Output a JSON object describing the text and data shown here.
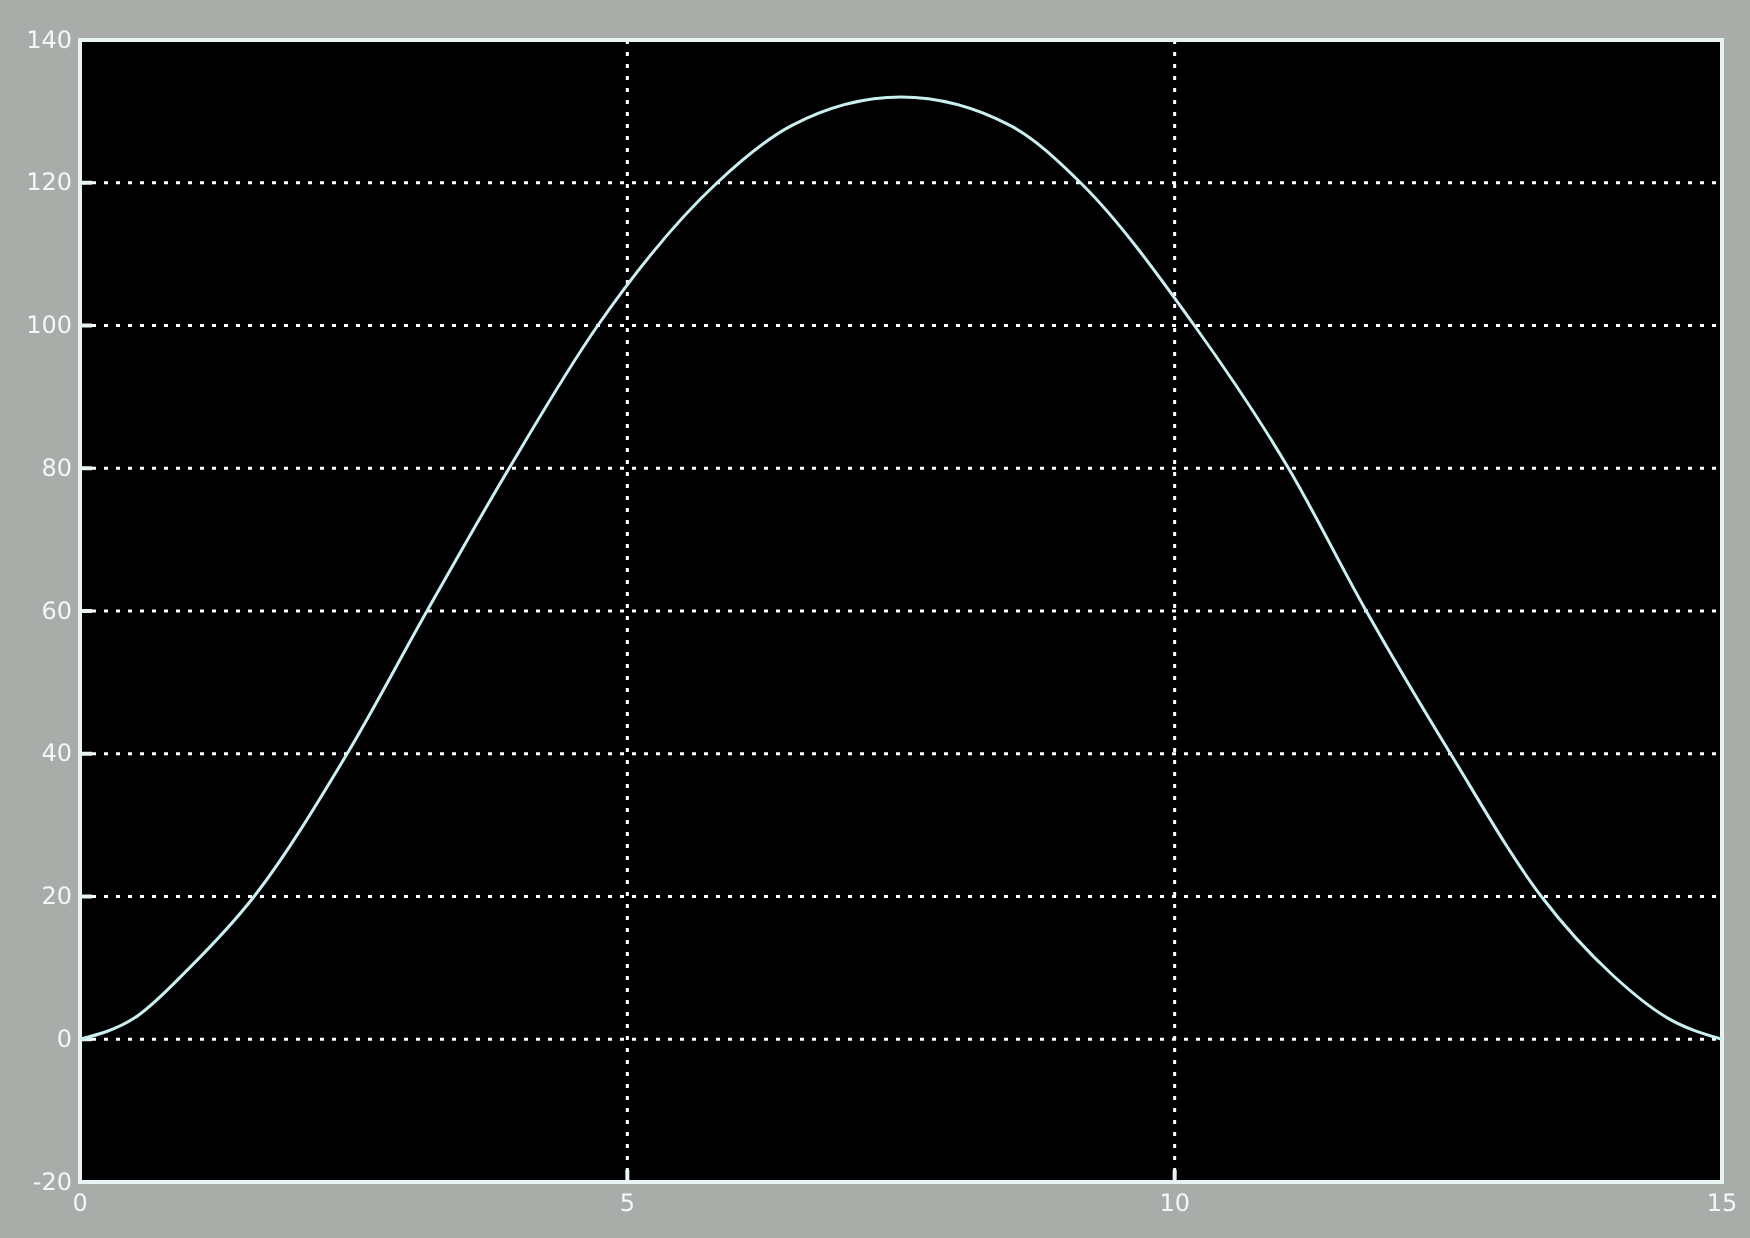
{
  "chart_data": {
    "type": "line",
    "xlim": [
      0,
      15
    ],
    "xticks": [
      0,
      5,
      10,
      15
    ],
    "ylim": [
      -20,
      140
    ],
    "yticks": [
      -20,
      0,
      20,
      40,
      60,
      80,
      100,
      120,
      140
    ],
    "grid": true,
    "series": [
      {
        "color": "#c8f0f0",
        "x": [
          0,
          0.5,
          1,
          1.59,
          2.44,
          3.17,
          3.92,
          4.73,
          5.82,
          6.5,
          7.5,
          8.5,
          9.14,
          10.18,
          11.04,
          11.75,
          12.52,
          13.35,
          14,
          14.5,
          15
        ],
        "values": [
          0,
          3,
          10,
          20,
          40,
          60,
          80,
          100,
          120,
          128,
          132,
          128,
          120,
          100,
          80,
          60,
          40,
          20,
          9,
          3,
          0
        ]
      }
    ]
  }
}
